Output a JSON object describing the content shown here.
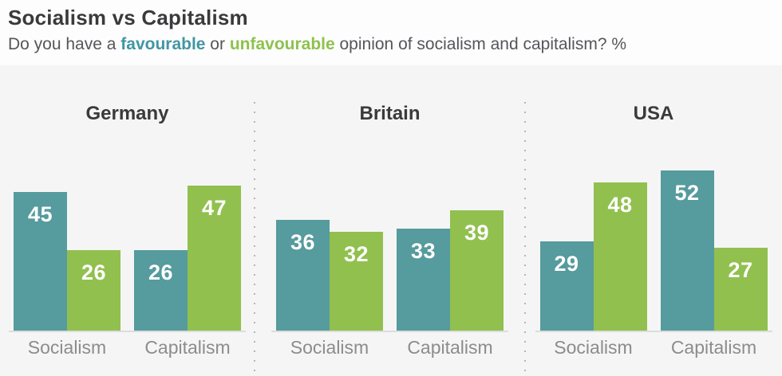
{
  "header": {
    "title": "Socialism vs Capitalism",
    "subtitle_segments": [
      {
        "text": "Do you have a ",
        "style": "plain"
      },
      {
        "text": "favourable",
        "style": "favourable"
      },
      {
        "text": " or ",
        "style": "plain"
      },
      {
        "text": "unfavourable",
        "style": "unfavourable"
      },
      {
        "text": " opinion of socialism and capitalism? %",
        "style": "plain"
      }
    ]
  },
  "colors": {
    "favourable_bar": "#569b9d",
    "unfavourable_bar": "#91c04f",
    "favourable_text": "#4296a3",
    "unfavourable_text": "#8dc24d",
    "title_text": "#3a3a3c",
    "subtitle_text": "#55565a",
    "axis_line": "#dcdcdd",
    "axis_label": "#8c8c8c",
    "divider_dot": "#b5b5b5"
  },
  "chart_data": {
    "type": "bar",
    "title": "Socialism vs Capitalism",
    "question": "Do you have a favourable or unfavourable opinion of socialism and capitalism? %",
    "unit": "%",
    "grid": false,
    "legend_position": "none (series colors explained in subtitle)",
    "ylim": [
      0,
      53
    ],
    "categories": [
      "Socialism",
      "Capitalism"
    ],
    "series": [
      {
        "name": "favourable",
        "color": "#569b9d"
      },
      {
        "name": "unfavourable",
        "color": "#91c04f"
      }
    ],
    "panels": [
      {
        "country": "Germany",
        "groups": [
          {
            "category": "Socialism",
            "bars": [
              {
                "series": "favourable",
                "value": 45
              },
              {
                "series": "unfavourable",
                "value": 26
              }
            ]
          },
          {
            "category": "Capitalism",
            "bars": [
              {
                "series": "favourable",
                "value": 26
              },
              {
                "series": "unfavourable",
                "value": 47
              }
            ]
          }
        ]
      },
      {
        "country": "Britain",
        "groups": [
          {
            "category": "Socialism",
            "bars": [
              {
                "series": "favourable",
                "value": 36
              },
              {
                "series": "unfavourable",
                "value": 32
              }
            ]
          },
          {
            "category": "Capitalism",
            "bars": [
              {
                "series": "favourable",
                "value": 33
              },
              {
                "series": "unfavourable",
                "value": 39
              }
            ]
          }
        ]
      },
      {
        "country": "USA",
        "groups": [
          {
            "category": "Socialism",
            "bars": [
              {
                "series": "favourable",
                "value": 29
              },
              {
                "series": "unfavourable",
                "value": 48
              }
            ]
          },
          {
            "category": "Capitalism",
            "bars": [
              {
                "series": "favourable",
                "value": 52
              },
              {
                "series": "unfavourable",
                "value": 27
              }
            ]
          }
        ]
      }
    ]
  }
}
